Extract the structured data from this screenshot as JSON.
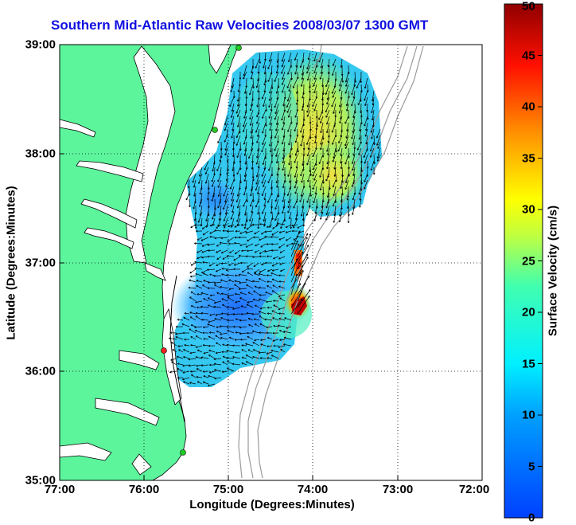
{
  "map": {
    "title": "Southern Mid-Atlantic Raw Velocities 2008/03/07 1300 GMT",
    "xlabel": "Longitude (Degrees:Minutes)",
    "ylabel": "Latitude (Degrees:Minutes)",
    "x_ticks": [
      "77:00",
      "76:00",
      "75:00",
      "74:00",
      "73:00",
      "72:00"
    ],
    "y_ticks": [
      "39:00",
      "38:00",
      "37:00",
      "36:00",
      "35:00"
    ],
    "lon_range": [
      -77,
      -72
    ],
    "lat_range": [
      35,
      39
    ],
    "grid": true,
    "land_color": "#5cf59c",
    "site_colors": [
      "#22cc22",
      "#ee2222"
    ],
    "colorbar": {
      "label": "Surface Velocity (cm/s)",
      "ticks": [
        "50",
        "45",
        "40",
        "35",
        "30",
        "25",
        "20",
        "15",
        "10",
        "5",
        "0"
      ],
      "range": [
        0,
        50
      ],
      "colormap": "jet"
    }
  }
}
